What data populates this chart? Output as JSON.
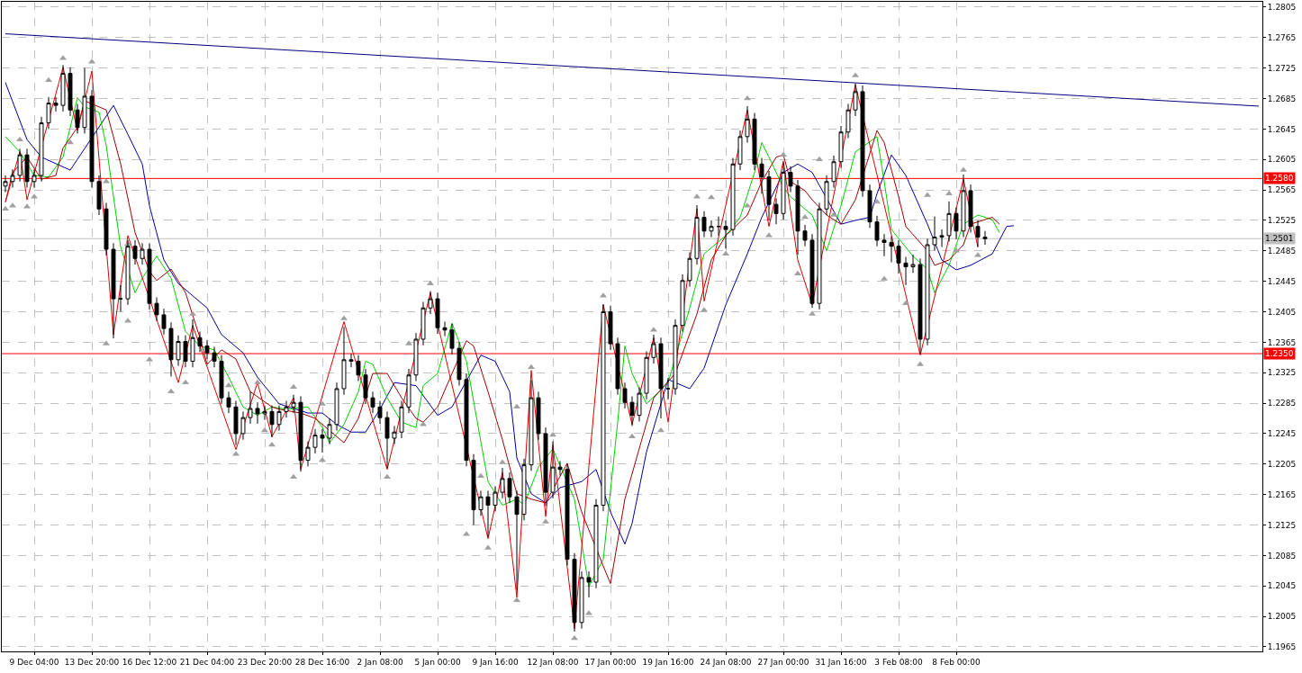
{
  "chart_data": {
    "type": "candlestick",
    "color": "#000000",
    "grid": true,
    "ylim": [
      1.1959,
      1.2812
    ],
    "yticks": [
      1.1965,
      1.2005,
      1.2045,
      1.2085,
      1.2125,
      1.2165,
      1.2205,
      1.2245,
      1.2285,
      1.2325,
      1.2365,
      1.2405,
      1.2445,
      1.2485,
      1.2525,
      1.2565,
      1.2605,
      1.2645,
      1.2685,
      1.2725,
      1.2765,
      1.2805
    ],
    "categories": [
      null,
      null,
      null,
      null,
      "9 Dec 04:00",
      null,
      null,
      null,
      null,
      null,
      null,
      null,
      "13 Dec 20:00",
      null,
      null,
      null,
      null,
      null,
      null,
      null,
      "16 Dec 12:00",
      null,
      null,
      null,
      null,
      null,
      null,
      null,
      "21 Dec 04:00",
      null,
      null,
      null,
      null,
      null,
      null,
      null,
      "23 Dec 20:00",
      null,
      null,
      null,
      null,
      null,
      null,
      null,
      "28 Dec 16:00",
      null,
      null,
      null,
      null,
      null,
      null,
      null,
      "2 Jan 08:00",
      null,
      null,
      null,
      null,
      null,
      null,
      null,
      "5 Jan 00:00",
      null,
      null,
      null,
      null,
      null,
      null,
      null,
      "9 Jan 16:00",
      null,
      null,
      null,
      null,
      null,
      null,
      null,
      "12 Jan 08:00",
      null,
      null,
      null,
      null,
      null,
      null,
      null,
      "17 Jan 00:00",
      null,
      null,
      null,
      null,
      null,
      null,
      null,
      "19 Jan 16:00",
      null,
      null,
      null,
      null,
      null,
      null,
      null,
      "24 Jan 08:00",
      null,
      null,
      null,
      null,
      null,
      null,
      null,
      "27 Jan 00:00",
      null,
      null,
      null,
      null,
      null,
      null,
      null,
      "31 Jan 16:00",
      null,
      null,
      null,
      null,
      null,
      null,
      null,
      "3 Feb 08:00",
      null,
      null,
      null,
      null,
      null,
      null,
      null,
      "8 Feb 00:00",
      null,
      null,
      null,
      null,
      null,
      null,
      null,
      null,
      null,
      null,
      null,
      null,
      null,
      null,
      null,
      null,
      null,
      null,
      null,
      null,
      null,
      null,
      null,
      null,
      null,
      null,
      null,
      null,
      null,
      null,
      null,
      null,
      null,
      null,
      null,
      null,
      null,
      null,
      null,
      null,
      null,
      null
    ],
    "ohlc": [
      [
        1.257,
        1.2584,
        1.2562,
        1.2576
      ],
      [
        1.2576,
        1.2592,
        1.2568,
        1.2584
      ],
      [
        1.2584,
        1.2619,
        1.2576,
        1.2611
      ],
      [
        1.2611,
        1.2619,
        1.2568,
        1.2576
      ],
      [
        1.2576,
        1.2592,
        1.2568,
        1.2584
      ],
      [
        1.2584,
        1.2661,
        1.2576,
        1.2653
      ],
      [
        1.2653,
        1.2687,
        1.2645,
        1.2679
      ],
      [
        1.2679,
        1.2687,
        1.2668,
        1.2676
      ],
      [
        1.2676,
        1.2729,
        1.2668,
        1.2718
      ],
      [
        1.2718,
        1.2726,
        1.2662,
        1.267
      ],
      [
        1.267,
        1.2678,
        1.2639,
        1.2647
      ],
      [
        1.2647,
        1.2725,
        1.2639,
        1.2688
      ],
      [
        1.2688,
        1.2696,
        1.2568,
        1.2576
      ],
      [
        1.2576,
        1.2584,
        1.2532,
        1.254
      ],
      [
        1.254,
        1.2548,
        1.2479,
        1.2487
      ],
      [
        1.2487,
        1.2495,
        1.237,
        1.2422
      ],
      [
        1.2422,
        1.244,
        1.2405,
        1.2422
      ],
      [
        1.2422,
        1.2499,
        1.2414,
        1.2491
      ],
      [
        1.2491,
        1.2499,
        1.2467,
        1.2475
      ],
      [
        1.2475,
        1.2495,
        1.2467,
        1.2487
      ],
      [
        1.2487,
        1.2495,
        1.2408,
        1.2416
      ],
      [
        1.2416,
        1.2424,
        1.2393,
        1.2401
      ],
      [
        1.2401,
        1.2409,
        1.2375,
        1.2383
      ],
      [
        1.2383,
        1.2391,
        1.232,
        1.2342
      ],
      [
        1.2342,
        1.2374,
        1.2334,
        1.2366
      ],
      [
        1.2366,
        1.2374,
        1.2332,
        1.234
      ],
      [
        1.234,
        1.2395,
        1.2332,
        1.2371
      ],
      [
        1.2371,
        1.2379,
        1.2352,
        1.236
      ],
      [
        1.236,
        1.2368,
        1.2343,
        1.2351
      ],
      [
        1.2351,
        1.2359,
        1.2332,
        1.234
      ],
      [
        1.234,
        1.2348,
        1.2284,
        1.2292
      ],
      [
        1.2292,
        1.23,
        1.2272,
        1.228
      ],
      [
        1.228,
        1.2288,
        1.223,
        1.2245
      ],
      [
        1.2245,
        1.2274,
        1.2237,
        1.2266
      ],
      [
        1.2266,
        1.23,
        1.2258,
        1.2278
      ],
      [
        1.2278,
        1.2286,
        1.2258,
        1.2271
      ],
      [
        1.2271,
        1.2282,
        1.2263,
        1.2274
      ],
      [
        1.2274,
        1.2282,
        1.224,
        1.2257
      ],
      [
        1.2257,
        1.2282,
        1.2249,
        1.2274
      ],
      [
        1.2274,
        1.2288,
        1.2266,
        1.228
      ],
      [
        1.228,
        1.2296,
        1.2272,
        1.2286
      ],
      [
        1.2286,
        1.2294,
        1.2195,
        1.221
      ],
      [
        1.221,
        1.2235,
        1.2202,
        1.2227
      ],
      [
        1.2227,
        1.2251,
        1.2219,
        1.2243
      ],
      [
        1.2243,
        1.2251,
        1.222,
        1.2239
      ],
      [
        1.2239,
        1.2265,
        1.2231,
        1.2257
      ],
      [
        1.2257,
        1.2312,
        1.2249,
        1.2304
      ],
      [
        1.2304,
        1.2385,
        1.2296,
        1.2342
      ],
      [
        1.2342,
        1.235,
        1.2332,
        1.234
      ],
      [
        1.234,
        1.2348,
        1.2314,
        1.2322
      ],
      [
        1.2322,
        1.233,
        1.2284,
        1.2292
      ],
      [
        1.2292,
        1.23,
        1.2272,
        1.228
      ],
      [
        1.228,
        1.2288,
        1.2258,
        1.2266
      ],
      [
        1.2266,
        1.2274,
        1.22,
        1.2239
      ],
      [
        1.2239,
        1.2255,
        1.2231,
        1.2247
      ],
      [
        1.2247,
        1.2288,
        1.2239,
        1.228
      ],
      [
        1.228,
        1.233,
        1.2272,
        1.2322
      ],
      [
        1.2322,
        1.2377,
        1.2314,
        1.2369
      ],
      [
        1.2369,
        1.2418,
        1.2361,
        1.241
      ],
      [
        1.241,
        1.2432,
        1.2402,
        1.2422
      ],
      [
        1.2422,
        1.243,
        1.2376,
        1.2384
      ],
      [
        1.2384,
        1.2392,
        1.2373,
        1.2381
      ],
      [
        1.2381,
        1.2389,
        1.2349,
        1.2357
      ],
      [
        1.2357,
        1.2365,
        1.2308,
        1.2316
      ],
      [
        1.2316,
        1.2324,
        1.2202,
        1.221
      ],
      [
        1.221,
        1.2218,
        1.2125,
        1.2145
      ],
      [
        1.2145,
        1.217,
        1.2137,
        1.2162
      ],
      [
        1.2162,
        1.217,
        1.211,
        1.2151
      ],
      [
        1.2151,
        1.2176,
        1.2143,
        1.2168
      ],
      [
        1.2168,
        1.22,
        1.216,
        1.2186
      ],
      [
        1.2186,
        1.2194,
        1.2154,
        1.2162
      ],
      [
        1.2162,
        1.217,
        1.204,
        1.2139
      ],
      [
        1.2139,
        1.2212,
        1.2131,
        1.2204
      ],
      [
        1.2204,
        1.2315,
        1.2196,
        1.2292
      ],
      [
        1.2292,
        1.23,
        1.2237,
        1.2245
      ],
      [
        1.2245,
        1.2253,
        1.215,
        1.2168
      ],
      [
        1.2168,
        1.2235,
        1.216,
        1.2201
      ],
      [
        1.2201,
        1.2209,
        1.219,
        1.2198
      ],
      [
        1.2198,
        1.2206,
        1.2072,
        1.208
      ],
      [
        1.208,
        1.2088,
        1.1985,
        1.1997
      ],
      [
        1.1997,
        1.2064,
        1.1989,
        1.2056
      ],
      [
        1.2056,
        1.2064,
        1.203,
        1.205
      ],
      [
        1.205,
        1.2159,
        1.2042,
        1.2151
      ],
      [
        1.2151,
        1.2415,
        1.2143,
        1.2405
      ],
      [
        1.2405,
        1.2413,
        1.2355,
        1.2363
      ],
      [
        1.2363,
        1.2371,
        1.2296,
        1.2304
      ],
      [
        1.2304,
        1.2312,
        1.2278,
        1.2286
      ],
      [
        1.2286,
        1.2294,
        1.2255,
        1.2269
      ],
      [
        1.2269,
        1.2306,
        1.2261,
        1.2298
      ],
      [
        1.2298,
        1.2353,
        1.229,
        1.2345
      ],
      [
        1.2345,
        1.2375,
        1.2337,
        1.2363
      ],
      [
        1.2363,
        1.2371,
        1.2265,
        1.2304
      ],
      [
        1.2304,
        1.2318,
        1.229,
        1.2304
      ],
      [
        1.2304,
        1.2395,
        1.2296,
        1.2387
      ],
      [
        1.2387,
        1.2454,
        1.2379,
        1.2446
      ],
      [
        1.2446,
        1.2483,
        1.2438,
        1.2475
      ],
      [
        1.2475,
        1.2545,
        1.2467,
        1.2529
      ],
      [
        1.2529,
        1.2537,
        1.2503,
        1.2511
      ],
      [
        1.2511,
        1.2525,
        1.2503,
        1.2517
      ],
      [
        1.2517,
        1.253,
        1.2505,
        1.2517
      ],
      [
        1.2517,
        1.2525,
        1.2488,
        1.2513
      ],
      [
        1.2513,
        1.2607,
        1.2505,
        1.2599
      ],
      [
        1.2599,
        1.2643,
        1.2591,
        1.2635
      ],
      [
        1.2635,
        1.2675,
        1.2627,
        1.2658
      ],
      [
        1.2658,
        1.2666,
        1.2591,
        1.2599
      ],
      [
        1.2599,
        1.2607,
        1.256,
        1.2582
      ],
      [
        1.2582,
        1.259,
        1.2525,
        1.2546
      ],
      [
        1.2546,
        1.2554,
        1.252,
        1.2534
      ],
      [
        1.2534,
        1.26,
        1.2526,
        1.2588
      ],
      [
        1.2588,
        1.2596,
        1.2562,
        1.257
      ],
      [
        1.257,
        1.2578,
        1.248,
        1.2511
      ],
      [
        1.2511,
        1.2519,
        1.2491,
        1.2499
      ],
      [
        1.2499,
        1.2507,
        1.241,
        1.2416
      ],
      [
        1.2416,
        1.2548,
        1.2408,
        1.254
      ],
      [
        1.254,
        1.2584,
        1.2532,
        1.2576
      ],
      [
        1.2576,
        1.261,
        1.2568,
        1.2602
      ],
      [
        1.2602,
        1.2649,
        1.2594,
        1.2641
      ],
      [
        1.2641,
        1.2678,
        1.2633,
        1.267
      ],
      [
        1.267,
        1.2705,
        1.2662,
        1.2694
      ],
      [
        1.2694,
        1.2702,
        1.2556,
        1.2564
      ],
      [
        1.2564,
        1.2572,
        1.2515,
        1.2523
      ],
      [
        1.2523,
        1.2531,
        1.2491,
        1.2499
      ],
      [
        1.2499,
        1.2507,
        1.2478,
        1.2496
      ],
      [
        1.2496,
        1.2504,
        1.247,
        1.2491
      ],
      [
        1.2491,
        1.2499,
        1.2455,
        1.2469
      ],
      [
        1.2469,
        1.2477,
        1.244,
        1.2464
      ],
      [
        1.2464,
        1.248,
        1.2456,
        1.2467
      ],
      [
        1.2467,
        1.2475,
        1.235,
        1.2369
      ],
      [
        1.2369,
        1.2501,
        1.2361,
        1.2493
      ],
      [
        1.2493,
        1.253,
        1.2485,
        1.2503
      ],
      [
        1.2503,
        1.2513,
        1.249,
        1.2505
      ],
      [
        1.2505,
        1.255,
        1.2497,
        1.2534
      ],
      [
        1.2534,
        1.2542,
        1.25,
        1.2511
      ],
      [
        1.2511,
        1.2585,
        1.2503,
        1.2564
      ],
      [
        1.2564,
        1.2572,
        1.2509,
        1.2517
      ],
      [
        1.2517,
        1.2525,
        1.249,
        1.2503
      ],
      [
        1.2503,
        1.2511,
        1.2493,
        1.2501
      ],
      null,
      null,
      null,
      null,
      null,
      null,
      null,
      null,
      null,
      null,
      null,
      null,
      null,
      null,
      null,
      null,
      null,
      null,
      null,
      null,
      null,
      null,
      null,
      null,
      null,
      null,
      null,
      null,
      null,
      null,
      null,
      null,
      null,
      null,
      null,
      null,
      null,
      null
    ],
    "series": [
      {
        "type": "line",
        "color": "#000080",
        "values": [
          1.277,
          null,
          null,
          null,
          null,
          null,
          null,
          null,
          null,
          null,
          null,
          null,
          null,
          null,
          null,
          null,
          null,
          null,
          null,
          null,
          null,
          null,
          null,
          null,
          null,
          null,
          null,
          null,
          null,
          null,
          null,
          null,
          null,
          null,
          null,
          null,
          null,
          null,
          null,
          null,
          null,
          null,
          null,
          null,
          null,
          null,
          null,
          null,
          null,
          null,
          null,
          null,
          null,
          null,
          null,
          null,
          null,
          null,
          null,
          null,
          null,
          null,
          null,
          null,
          null,
          null,
          null,
          null,
          null,
          null,
          null,
          null,
          null,
          null,
          null,
          null,
          null,
          null,
          null,
          null,
          null,
          null,
          null,
          null,
          null,
          null,
          null,
          null,
          null,
          null,
          null,
          null,
          null,
          null,
          null,
          null,
          null,
          null,
          null,
          null,
          null,
          null,
          null,
          null,
          null,
          null,
          null,
          null,
          null,
          null,
          null,
          null,
          null,
          null,
          null,
          null,
          null,
          null,
          null,
          null,
          null,
          null,
          null,
          null,
          null,
          null,
          null,
          null,
          null,
          null,
          null,
          null,
          null,
          null,
          null,
          null,
          null,
          null,
          null,
          null,
          null,
          null,
          null,
          null,
          null,
          null,
          null,
          null,
          null,
          null,
          null,
          null,
          null,
          null,
          null,
          null,
          null,
          null,
          null,
          null,
          null,
          null,
          null,
          null,
          null,
          null,
          null,
          null,
          null,
          null,
          null,
          null,
          null,
          null,
          1.2675
        ]
      },
      {
        "type": "line",
        "color": "#0000a0",
        "values": [
          1.2706,
          null,
          null,
          1.2631,
          null,
          1.2608,
          null,
          null,
          null,
          1.2591,
          null,
          null,
          null,
          null,
          null,
          1.2676,
          null,
          1.2638,
          null,
          1.2599,
          1.2544,
          null,
          1.2473,
          null,
          1.2442,
          null,
          null,
          null,
          1.241,
          null,
          1.2375,
          null,
          null,
          1.2351,
          null,
          1.2319,
          null,
          null,
          1.2284,
          null,
          null,
          null,
          1.2272,
          null,
          1.2272,
          null,
          1.2257,
          null,
          1.2247,
          null,
          1.2247,
          null,
          1.2277,
          null,
          1.2312,
          null,
          null,
          1.2308,
          null,
          null,
          1.2269,
          null,
          1.228,
          null,
          null,
          null,
          1.2348,
          null,
          1.234,
          null,
          1.23,
          1.2213,
          null,
          1.2166,
          null,
          1.2154,
          null,
          1.2174,
          null,
          null,
          1.2182,
          null,
          1.2198,
          null,
          1.2142,
          null,
          1.21,
          1.2127,
          null,
          1.2221,
          null,
          null,
          1.2316,
          null,
          null,
          1.2304,
          null,
          1.2331,
          null,
          null,
          1.2414,
          null,
          null,
          1.2481,
          null,
          1.2529,
          null,
          null,
          1.2588,
          null,
          1.2599,
          null,
          1.2588,
          null,
          null,
          null,
          1.252,
          null,
          1.2525,
          null,
          1.2529,
          1.256,
          null,
          1.2611,
          null,
          1.2584,
          null,
          null,
          1.252,
          null,
          1.2473,
          null,
          1.246,
          null,
          1.2466,
          null,
          null,
          1.2481,
          null,
          1.2517,
          1.2518,
          null,
          null,
          null,
          null,
          null,
          null,
          null,
          null,
          null,
          null,
          null,
          null,
          null,
          null,
          null,
          null,
          null,
          null,
          null,
          null,
          null,
          null,
          null,
          null,
          null,
          null,
          null,
          null,
          null,
          null,
          null,
          null,
          null,
          null
        ]
      },
      {
        "type": "line",
        "color": "#00d000",
        "values": [
          1.2635,
          null,
          1.2615,
          null,
          1.2584,
          null,
          1.2582,
          null,
          1.2608,
          null,
          1.2686,
          1.2674,
          null,
          1.2667,
          1.2623,
          null,
          1.249,
          null,
          1.243,
          1.2449,
          null,
          1.2478,
          null,
          1.2449,
          null,
          1.2379,
          null,
          1.236,
          null,
          1.2355,
          null,
          1.2319,
          null,
          1.228,
          null,
          1.2269,
          null,
          1.228,
          null,
          1.2277,
          null,
          null,
          1.228,
          null,
          1.2253,
          1.2233,
          null,
          1.2257,
          null,
          1.23,
          1.234,
          1.2336,
          null,
          1.2292,
          null,
          1.226,
          null,
          1.2253,
          1.2308,
          null,
          1.2324,
          null,
          1.239,
          null,
          1.234,
          null,
          null,
          1.2182,
          null,
          1.2151,
          null,
          1.2159,
          1.2151,
          null,
          1.2201,
          null,
          1.2225,
          null,
          null,
          1.2159,
          null,
          1.2044,
          null,
          1.208,
          null,
          1.226,
          1.236,
          1.2324,
          null,
          1.2284,
          null,
          null,
          1.2312,
          null,
          null,
          1.241,
          null,
          1.2481,
          null,
          1.2497,
          1.2505,
          null,
          1.2529,
          null,
          1.2588,
          1.2627,
          1.2608,
          null,
          1.2568,
          1.2556,
          null,
          null,
          1.2532,
          null,
          1.2485,
          null,
          1.2544,
          null,
          1.2615,
          null,
          null,
          1.2635,
          1.2576,
          1.2513,
          null,
          null,
          1.2478,
          null,
          1.2461,
          1.243,
          null,
          1.2466,
          null,
          1.252,
          null,
          1.2532,
          null,
          1.2526,
          1.2509,
          null,
          null,
          null,
          null,
          null,
          null,
          null,
          null,
          null,
          null,
          null,
          null,
          null,
          null,
          null,
          null,
          null,
          null,
          null,
          null,
          null,
          null,
          null,
          null,
          null,
          null,
          null,
          null,
          null,
          null,
          null,
          null,
          null,
          null,
          null,
          null
        ]
      },
      {
        "type": "line",
        "color": "#a00000",
        "values": [
          1.2549,
          1.2588,
          null,
          1.2608,
          null,
          1.2579,
          null,
          1.2584,
          1.262,
          null,
          1.2647,
          1.2682,
          null,
          1.2674,
          1.267,
          null,
          1.2599,
          null,
          1.2509,
          null,
          1.2458,
          1.2446,
          null,
          1.2461,
          null,
          1.243,
          null,
          1.2371,
          1.2336,
          null,
          1.2355,
          null,
          1.2343,
          null,
          1.23,
          null,
          null,
          1.228,
          1.2277,
          null,
          null,
          1.2272,
          null,
          1.2265,
          null,
          1.2249,
          null,
          1.2233,
          null,
          1.2265,
          null,
          1.2324,
          null,
          1.2324,
          null,
          1.2292,
          null,
          1.2265,
          1.226,
          null,
          1.228,
          null,
          1.2324,
          null,
          1.2367,
          1.236,
          null,
          1.23,
          null,
          1.2237,
          null,
          1.2166,
          null,
          1.2159,
          null,
          1.2154,
          null,
          1.2189,
          1.2206,
          null,
          1.2142,
          null,
          null,
          1.2071,
          1.2048,
          null,
          1.2159,
          null,
          null,
          null,
          1.2292,
          null,
          null,
          1.2324,
          null,
          null,
          1.2402,
          null,
          1.2473,
          null,
          1.2505,
          null,
          null,
          1.2532,
          null,
          1.2576,
          null,
          1.2608,
          1.2611,
          1.2576,
          null,
          1.2564,
          1.2552,
          null,
          1.2532,
          null,
          1.252,
          null,
          1.2552,
          null,
          null,
          1.2643,
          1.2627,
          null,
          1.2556,
          1.2517,
          null,
          null,
          1.2485,
          1.2466,
          null,
          1.2473,
          null,
          1.2493,
          1.252,
          null,
          null,
          1.2529,
          1.252,
          null,
          null,
          null,
          null,
          null,
          null,
          null,
          null,
          null,
          null,
          null,
          null,
          null,
          null,
          null,
          null,
          null,
          null,
          null,
          null,
          null,
          null,
          null,
          null,
          null,
          null,
          null,
          null,
          null,
          null,
          null,
          null,
          null,
          null,
          null,
          null
        ]
      },
      {
        "type": "line",
        "color": "#e00000",
        "values": [
          1.2549,
          null,
          1.2615,
          1.2552,
          null,
          null,
          null,
          null,
          1.2726,
          null,
          1.2643,
          null,
          1.2721,
          null,
          null,
          1.2375,
          null,
          1.2505,
          null,
          null,
          null,
          null,
          null,
          null,
          1.2312,
          null,
          1.2387,
          null,
          null,
          null,
          null,
          null,
          1.2224,
          null,
          null,
          1.2312,
          null,
          1.2241,
          null,
          null,
          1.2292,
          1.2198,
          null,
          null,
          null,
          null,
          null,
          1.2392,
          null,
          null,
          null,
          null,
          null,
          1.2198,
          null,
          null,
          null,
          null,
          null,
          1.243,
          null,
          null,
          null,
          null,
          null,
          null,
          null,
          1.2107,
          null,
          1.2194,
          null,
          1.203,
          null,
          1.2328,
          null,
          1.2136,
          1.223,
          null,
          null,
          1.1989,
          null,
          null,
          null,
          1.2414,
          null,
          null,
          null,
          1.2257,
          null,
          null,
          1.2371,
          null,
          1.226,
          null,
          null,
          null,
          1.254,
          1.2419,
          null,
          null,
          null,
          null,
          null,
          1.267,
          null,
          null,
          1.2517,
          null,
          1.2603,
          null,
          1.2473,
          null,
          1.2414,
          null,
          null,
          null,
          null,
          null,
          1.2703,
          null,
          null,
          null,
          null,
          null,
          null,
          null,
          null,
          1.2348,
          null,
          null,
          null,
          null,
          null,
          1.2579,
          null,
          1.249,
          null,
          null,
          null,
          null,
          null,
          null,
          null,
          null,
          null,
          null,
          null,
          null,
          null,
          null,
          null,
          null,
          null,
          null,
          null,
          null,
          null,
          null,
          null,
          null,
          null,
          null,
          null,
          null,
          null,
          null,
          null,
          null,
          null,
          null,
          null,
          null,
          null,
          null,
          null
        ]
      },
      {
        "type": "scatter",
        "color": "#a0a0a0",
        "marker": "triangle",
        "values": [
          null,
          null,
          1.2631,
          null,
          null,
          null,
          1.2709,
          null,
          1.2738,
          null,
          null,
          null,
          1.2733,
          null,
          1.2576,
          null,
          null,
          1.2494,
          null,
          null,
          null,
          null,
          null,
          null,
          null,
          null,
          1.2402,
          null,
          null,
          null,
          null,
          1.2308,
          null,
          null,
          null,
          1.2312,
          null,
          null,
          null,
          null,
          1.2306,
          null,
          null,
          null,
          1.2284,
          null,
          null,
          1.2396,
          null,
          null,
          null,
          null,
          null,
          null,
          null,
          null,
          1.2363,
          null,
          null,
          1.2442,
          null,
          null,
          null,
          null,
          null,
          null,
          1.2189,
          null,
          null,
          1.2207,
          null,
          1.228,
          null,
          1.2332,
          null,
          null,
          1.2243,
          null,
          null,
          null,
          null,
          null,
          null,
          1.2426,
          null,
          null,
          null,
          null,
          null,
          null,
          1.2381,
          null,
          null,
          null,
          null,
          null,
          1.2556,
          null,
          1.2555,
          null,
          null,
          null,
          null,
          1.2685,
          null,
          null,
          null,
          null,
          1.2611,
          null,
          null,
          1.2529,
          null,
          1.2605,
          null,
          null,
          null,
          null,
          1.2715,
          null,
          null,
          1.2549,
          null,
          null,
          null,
          null,
          null,
          null,
          1.2558,
          null,
          null,
          1.256,
          null,
          1.2591,
          null,
          null,
          null,
          null,
          null,
          null,
          null,
          null,
          null,
          null,
          null,
          null,
          null,
          null,
          null,
          null,
          null,
          null,
          null,
          null,
          null,
          null,
          null,
          null,
          null,
          null,
          null,
          null,
          null,
          null,
          null,
          null,
          null,
          null,
          null,
          null,
          null,
          null,
          null,
          null,
          null
        ]
      },
      {
        "type": "scatter",
        "color": "#a0a0a0",
        "marker": "triangle",
        "values": [
          1.254,
          1.2544,
          null,
          1.2543,
          1.2556,
          null,
          null,
          null,
          null,
          1.2627,
          null,
          null,
          null,
          null,
          1.2363,
          null,
          null,
          1.2393,
          null,
          null,
          1.2342,
          null,
          null,
          1.23,
          null,
          1.2312,
          null,
          null,
          null,
          null,
          null,
          null,
          1.2218,
          null,
          null,
          null,
          1.2249,
          1.223,
          null,
          null,
          1.2188,
          null,
          null,
          null,
          1.221,
          null,
          null,
          null,
          null,
          null,
          null,
          null,
          null,
          1.2188,
          null,
          null,
          null,
          null,
          1.2257,
          null,
          null,
          null,
          null,
          null,
          1.2113,
          null,
          null,
          1.2095,
          null,
          null,
          null,
          1.2026,
          null,
          null,
          null,
          1.2129,
          null,
          null,
          null,
          1.1976,
          null,
          1.2009,
          null,
          null,
          null,
          null,
          null,
          1.2241,
          null,
          null,
          null,
          1.2249,
          null,
          null,
          null,
          null,
          null,
          1.2407,
          null,
          null,
          1.2481,
          null,
          null,
          1.2544,
          null,
          null,
          1.2505,
          null,
          null,
          null,
          1.2455,
          null,
          1.2402,
          null,
          null,
          1.2532,
          null,
          null,
          null,
          null,
          null,
          null,
          1.2448,
          null,
          null,
          1.2416,
          null,
          1.2336,
          null,
          null,
          null,
          null,
          1.2485,
          null,
          null,
          1.2479,
          null,
          null,
          null,
          null,
          null,
          null,
          null,
          null,
          null,
          null,
          null,
          null,
          null,
          null,
          null,
          null,
          null,
          null,
          null,
          null,
          null,
          null,
          null,
          null,
          null,
          null,
          null,
          null,
          null,
          null,
          null,
          null,
          null,
          null,
          null,
          null,
          null,
          null,
          null
        ]
      }
    ],
    "ref_lines": [
      {
        "axis": "y",
        "value": 1.258,
        "label": "1.2580",
        "color": "#ff0000",
        "line_style": "solid"
      },
      {
        "axis": "y",
        "value": 1.235,
        "label": "1.2350",
        "color": "#ff0000",
        "line_style": "solid"
      },
      {
        "axis": "y",
        "value": 1.2501,
        "label": "1.2501",
        "color": "#c0c0c0",
        "line_style": "solid"
      }
    ]
  }
}
